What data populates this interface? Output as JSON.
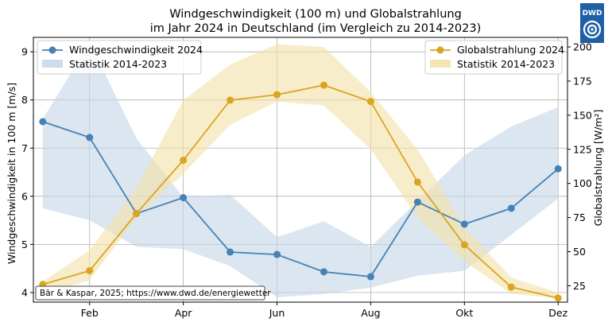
{
  "chart_data": {
    "type": "line",
    "title_line1": "Windgeschwindigkeit (100 m) und Globalstrahlung",
    "title_line2": "im Jahr 2024 in Deutschland (im Vergleich zu 2014-2023)",
    "logo_text": "DWD",
    "credit": "Bär & Kaspar, 2025; https://www.dwd.de/energiewetter",
    "x_tick_labels": [
      "Feb",
      "Apr",
      "Jun",
      "Aug",
      "Okt",
      "Dez"
    ],
    "x_tick_months": [
      2,
      4,
      6,
      8,
      10,
      12
    ],
    "xlim": [
      0.8,
      12.2
    ],
    "y_left": {
      "label": "Windgeschwindigkeit in 100 m [m/s]",
      "ylim": [
        3.8,
        9.3
      ],
      "ticks": [
        4,
        5,
        6,
        7,
        8,
        9
      ]
    },
    "y_right": {
      "label": "Globalstrahlung [W/m²]",
      "ylim": [
        13,
        207
      ],
      "ticks": [
        25,
        50,
        75,
        100,
        125,
        150,
        175,
        200
      ]
    },
    "grid": true,
    "colors": {
      "wind": "#4682b4",
      "wind_band": "#c3d6e8",
      "solar": "#daa520",
      "solar_band": "#f3e1a6"
    },
    "series": [
      {
        "name": "Windgeschwindigkeit 2024",
        "axis": "left",
        "x": [
          1,
          2,
          3,
          4,
          5,
          6,
          7,
          8,
          9,
          10,
          11,
          12
        ],
        "values": [
          7.55,
          7.22,
          5.64,
          5.97,
          4.84,
          4.79,
          4.43,
          4.33,
          5.88,
          5.42,
          5.75,
          6.57
        ],
        "band_name": "Statistik 2014-2023",
        "band_lower": [
          5.75,
          5.5,
          4.95,
          4.9,
          4.55,
          3.9,
          3.97,
          4.1,
          4.35,
          4.45,
          5.2,
          5.95
        ],
        "band_upper": [
          7.6,
          9.2,
          7.2,
          5.98,
          6.03,
          5.15,
          5.48,
          4.95,
          5.9,
          6.85,
          7.45,
          7.85
        ],
        "legend_position": "top-left"
      },
      {
        "name": "Globalstrahlung 2024",
        "axis": "right",
        "x": [
          1,
          2,
          3,
          4,
          5,
          6,
          7,
          8,
          9,
          10,
          11,
          12
        ],
        "values": [
          26,
          36,
          78,
          117,
          161,
          165,
          172,
          160,
          101,
          55,
          24,
          16
        ],
        "band_name": "Statistik 2014-2023",
        "band_lower": [
          19,
          29,
          75,
          107,
          143,
          160,
          157,
          125,
          75,
          43,
          19,
          16
        ],
        "band_upper": [
          28,
          51,
          97,
          161,
          187,
          202,
          200,
          167,
          125,
          68,
          31,
          20
        ],
        "legend_position": "top-right"
      }
    ]
  }
}
